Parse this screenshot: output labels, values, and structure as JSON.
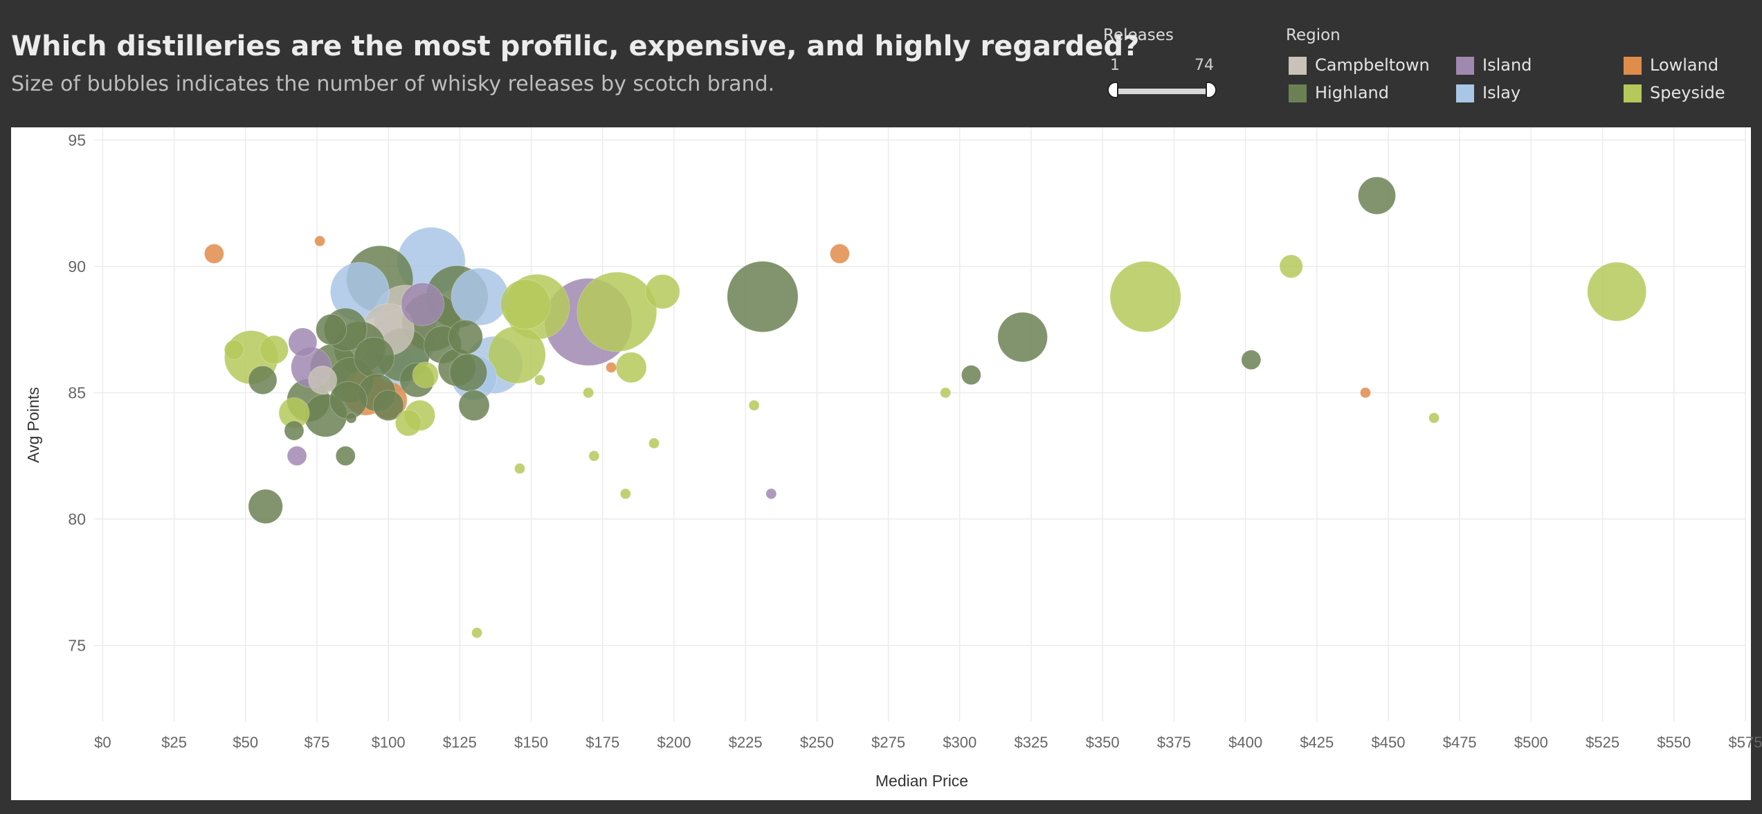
{
  "title": "Which distilleries are the most profilic, expensive, and highly regarded?",
  "subtitle": "Size of bubbles indicates the number of whisky releases by scotch brand.",
  "filters": {
    "releases": {
      "label": "Releases",
      "min": "1",
      "max": "74"
    }
  },
  "legend": {
    "title": "Region",
    "items": [
      {
        "name": "Campbeltown",
        "color": "#c9c2b8"
      },
      {
        "name": "Island",
        "color": "#a088b0"
      },
      {
        "name": "Lowland",
        "color": "#e08c4a"
      },
      {
        "name": "Highland",
        "color": "#6b8153"
      },
      {
        "name": "Islay",
        "color": "#a9c6e6"
      },
      {
        "name": "Speyside",
        "color": "#b5c95a"
      }
    ]
  },
  "chart_data": {
    "type": "scatter",
    "title": "Which distilleries are the most profilic, expensive, and highly regarded?",
    "subtitle": "Size of bubbles indicates the number of whisky releases by scotch brand.",
    "xlabel": "Median Price",
    "ylabel": "Avg Points",
    "xlim": [
      -3,
      575
    ],
    "ylim": [
      72,
      95.5
    ],
    "x_ticks": [
      "$0",
      "$25",
      "$50",
      "$75",
      "$100",
      "$125",
      "$150",
      "$175",
      "$200",
      "$225",
      "$250",
      "$275",
      "$300",
      "$325",
      "$350",
      "$375",
      "$400",
      "$425",
      "$450",
      "$475",
      "$500",
      "$525",
      "$550",
      "$575"
    ],
    "x_tick_values": [
      0,
      25,
      50,
      75,
      100,
      125,
      150,
      175,
      200,
      225,
      250,
      275,
      300,
      325,
      350,
      375,
      400,
      425,
      450,
      475,
      500,
      525,
      550,
      575
    ],
    "y_ticks": [
      "75",
      "80",
      "85",
      "90",
      "95"
    ],
    "y_tick_values": [
      75,
      80,
      85,
      90,
      95
    ],
    "grid": true,
    "size_encoding": "Releases",
    "series": [
      {
        "name": "Lowland",
        "color": "#e08c4a",
        "points": [
          {
            "x": 39,
            "y": 90.5,
            "releases": 2
          },
          {
            "x": 76,
            "y": 91.0,
            "releases": 1
          },
          {
            "x": 258,
            "y": 90.5,
            "releases": 2
          },
          {
            "x": 178,
            "y": 86.0,
            "releases": 1
          },
          {
            "x": 442,
            "y": 85.0,
            "releases": 1
          },
          {
            "x": 92,
            "y": 85.0,
            "releases": 16
          },
          {
            "x": 100,
            "y": 84.7,
            "releases": 10
          }
        ]
      },
      {
        "name": "Island",
        "color": "#a088b0",
        "points": [
          {
            "x": 70,
            "y": 87.0,
            "releases": 5
          },
          {
            "x": 73,
            "y": 86.0,
            "releases": 12
          },
          {
            "x": 68,
            "y": 82.5,
            "releases": 2
          },
          {
            "x": 234,
            "y": 81.0,
            "releases": 1
          },
          {
            "x": 170,
            "y": 87.8,
            "releases": 74
          },
          {
            "x": 112,
            "y": 88.5,
            "releases": 14
          }
        ]
      },
      {
        "name": "Islay",
        "color": "#a9c6e6",
        "points": [
          {
            "x": 115,
            "y": 90.2,
            "releases": 42
          },
          {
            "x": 90,
            "y": 89.0,
            "releases": 30
          },
          {
            "x": 132,
            "y": 88.8,
            "releases": 28
          },
          {
            "x": 137,
            "y": 86.1,
            "releases": 28
          },
          {
            "x": 130,
            "y": 85.6,
            "releases": 16
          },
          {
            "x": 105,
            "y": 87.0,
            "releases": 36
          },
          {
            "x": 100,
            "y": 86.0,
            "releases": 24
          }
        ]
      },
      {
        "name": "Campbeltown",
        "color": "#c9c2b8",
        "points": [
          {
            "x": 106,
            "y": 88.0,
            "releases": 36
          },
          {
            "x": 100,
            "y": 87.5,
            "releases": 22
          },
          {
            "x": 77,
            "y": 85.5,
            "releases": 5
          }
        ]
      },
      {
        "name": "Speyside",
        "color": "#b5c95a",
        "points": [
          {
            "x": 52,
            "y": 86.4,
            "releases": 24
          },
          {
            "x": 46,
            "y": 86.7,
            "releases": 2
          },
          {
            "x": 60,
            "y": 86.7,
            "releases": 5
          },
          {
            "x": 67,
            "y": 84.2,
            "releases": 6
          },
          {
            "x": 107,
            "y": 83.8,
            "releases": 4
          },
          {
            "x": 111,
            "y": 84.1,
            "releases": 6
          },
          {
            "x": 113,
            "y": 85.7,
            "releases": 4
          },
          {
            "x": 148,
            "y": 88.5,
            "releases": 20
          },
          {
            "x": 152,
            "y": 88.4,
            "releases": 38
          },
          {
            "x": 145,
            "y": 86.5,
            "releases": 28
          },
          {
            "x": 180,
            "y": 88.2,
            "releases": 60
          },
          {
            "x": 196,
            "y": 89.0,
            "releases": 8
          },
          {
            "x": 185,
            "y": 86.0,
            "releases": 6
          },
          {
            "x": 153,
            "y": 85.5,
            "releases": 1
          },
          {
            "x": 170,
            "y": 85.0,
            "releases": 1
          },
          {
            "x": 146,
            "y": 82.0,
            "releases": 1
          },
          {
            "x": 172,
            "y": 82.5,
            "releases": 1
          },
          {
            "x": 193,
            "y": 83.0,
            "releases": 1
          },
          {
            "x": 183,
            "y": 81.0,
            "releases": 1
          },
          {
            "x": 131,
            "y": 75.5,
            "releases": 1
          },
          {
            "x": 228,
            "y": 84.5,
            "releases": 1
          },
          {
            "x": 295,
            "y": 85.0,
            "releases": 1
          },
          {
            "x": 365,
            "y": 88.8,
            "releases": 46
          },
          {
            "x": 416,
            "y": 90.0,
            "releases": 3
          },
          {
            "x": 530,
            "y": 89.0,
            "releases": 30
          },
          {
            "x": 466,
            "y": 84.0,
            "releases": 1
          }
        ]
      },
      {
        "name": "Highland",
        "color": "#6b8153",
        "points": [
          {
            "x": 446,
            "y": 92.8,
            "releases": 10
          },
          {
            "x": 231,
            "y": 88.8,
            "releases": 46
          },
          {
            "x": 322,
            "y": 87.2,
            "releases": 20
          },
          {
            "x": 304,
            "y": 85.7,
            "releases": 2
          },
          {
            "x": 402,
            "y": 86.3,
            "releases": 2
          },
          {
            "x": 97,
            "y": 89.5,
            "releases": 40
          },
          {
            "x": 124,
            "y": 88.8,
            "releases": 34
          },
          {
            "x": 115,
            "y": 87.8,
            "releases": 30
          },
          {
            "x": 85,
            "y": 87.5,
            "releases": 14
          },
          {
            "x": 80,
            "y": 87.5,
            "releases": 6
          },
          {
            "x": 90,
            "y": 86.8,
            "releases": 22
          },
          {
            "x": 95,
            "y": 86.4,
            "releases": 12
          },
          {
            "x": 81,
            "y": 86.0,
            "releases": 18
          },
          {
            "x": 105,
            "y": 86.5,
            "releases": 24
          },
          {
            "x": 119,
            "y": 86.9,
            "releases": 10
          },
          {
            "x": 124,
            "y": 86.0,
            "releases": 10
          },
          {
            "x": 128,
            "y": 85.8,
            "releases": 10
          },
          {
            "x": 127,
            "y": 87.2,
            "releases": 8
          },
          {
            "x": 87,
            "y": 85.5,
            "releases": 16
          },
          {
            "x": 96,
            "y": 85.0,
            "releases": 10
          },
          {
            "x": 110,
            "y": 85.5,
            "releases": 8
          },
          {
            "x": 56,
            "y": 85.5,
            "releases": 5
          },
          {
            "x": 72,
            "y": 84.7,
            "releases": 14
          },
          {
            "x": 78,
            "y": 84.1,
            "releases": 14
          },
          {
            "x": 86,
            "y": 84.7,
            "releases": 10
          },
          {
            "x": 100,
            "y": 84.5,
            "releases": 6
          },
          {
            "x": 87,
            "y": 84.0,
            "releases": 1
          },
          {
            "x": 67,
            "y": 83.5,
            "releases": 2
          },
          {
            "x": 85,
            "y": 82.5,
            "releases": 2
          },
          {
            "x": 130,
            "y": 84.5,
            "releases": 6
          },
          {
            "x": 57,
            "y": 80.5,
            "releases": 8
          }
        ]
      }
    ]
  }
}
